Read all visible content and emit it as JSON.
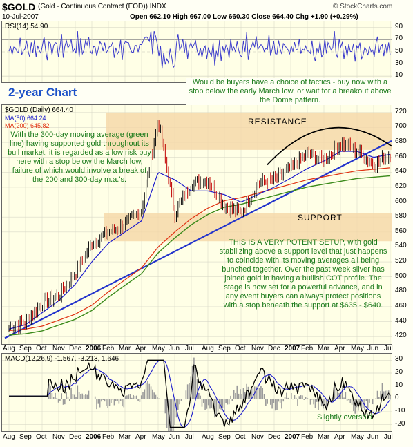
{
  "header": {
    "symbol": "$GOLD",
    "name": "(Gold - Continuous Contract (EOD)) INDX",
    "source": "© StockCharts.com",
    "date": "10-Jul-2007",
    "ohlc": "Open 662.10  High 667.00  Low 660.30  Close 664.40  Chg +1.90 (+0.29%)",
    "chg_arrow": "▲"
  },
  "colors": {
    "background": "#ffffe6",
    "rsi": "#3a3acc",
    "price_up": "#111111",
    "price_down": "#c00000",
    "ma50": "#1a1acc",
    "ma200": "#e03010",
    "ma300": "#3a8a1a",
    "trendline": "#2233cc",
    "band": "#f5d7a6",
    "annotation": "#1a7a1a"
  },
  "rsi_panel": {
    "label": "RSI(14) 54.90",
    "yticks": [
      "90",
      "70",
      "50",
      "30",
      "10"
    ]
  },
  "main_panel": {
    "subtitle": "2-year Chart",
    "legend": [
      {
        "text": "$GOLD (Daily) 664.40",
        "color": "#000000"
      },
      {
        "text": "MA(50) 664.24",
        "color": "#1a1acc"
      },
      {
        "text": "MA(200) 645.82",
        "color": "#e03010"
      }
    ],
    "resistance_label": "RESISTANCE",
    "support_label": "SUPPORT",
    "note_top": "Would be buyers have a choice of tactics - buy now with a stop below the early March low, or wait for a breakout above the Dome pattern.",
    "note_left": "With the 300-day moving average (green line) having supported gold throughout its bull market, it is regarded as a low risk buy here with a stop below the March low, failure of which would involve a break of the 200 and 300-day m.a.'s.",
    "note_bottom": "THIS IS A VERY POTENT SETUP, with gold stabilizing above a support level that just happens to coincide with its moving averages all being bunched together. Over the past week silver has joined gold in having a bullish COT profile. The stage is now set for a powerful advance, and in any event buyers can always protect positions with a stop beneath the support at $635 - $640.",
    "yticks": [
      "720",
      "700",
      "680",
      "660",
      "640",
      "620",
      "600",
      "580",
      "560",
      "540",
      "520",
      "500",
      "480",
      "460",
      "440",
      "420"
    ],
    "xticks": [
      "Aug",
      "Sep",
      "Oct",
      "Nov",
      "Dec",
      "2006",
      "Feb",
      "Mar",
      "Apr",
      "May",
      "Jun",
      "Jul",
      "Aug",
      "Sep",
      "Oct",
      "Nov",
      "Dec",
      "2007",
      "Feb",
      "Mar",
      "Apr",
      "May",
      "Jun",
      "Jul"
    ]
  },
  "macd_panel": {
    "label": "MACD(12,26,9) -1.567, -3.213, 1.646",
    "note": "Slightly oversold",
    "yticks": [
      "30",
      "20",
      "10",
      "0",
      "-10",
      "-20"
    ]
  },
  "chart_data": {
    "type": "line",
    "title": "$GOLD (Gold - Continuous Contract (EOD)) INDX",
    "subtitle": "2-year Chart",
    "x": [
      "Aug",
      "Sep",
      "Oct",
      "Nov",
      "Dec",
      "2006",
      "Feb",
      "Mar",
      "Apr",
      "May",
      "Jun",
      "Jul",
      "Aug",
      "Sep",
      "Oct",
      "Nov",
      "Dec",
      "2007",
      "Feb",
      "Mar",
      "Apr",
      "May",
      "Jun",
      "Jul"
    ],
    "ylim": [
      410,
      730
    ],
    "series": [
      {
        "name": "$GOLD (Daily)",
        "values": [
          432,
          440,
          465,
          475,
          505,
          545,
          560,
          570,
          590,
          710,
          585,
          625,
          630,
          595,
          585,
          625,
          630,
          645,
          665,
          655,
          680,
          668,
          650,
          664
        ]
      },
      {
        "name": "MA(50)",
        "values": [
          430,
          436,
          452,
          468,
          490,
          520,
          545,
          560,
          575,
          640,
          630,
          615,
          615,
          610,
          600,
          610,
          620,
          632,
          645,
          655,
          668,
          668,
          660,
          664
        ]
      },
      {
        "name": "MA(200)",
        "values": [
          428,
          430,
          434,
          442,
          450,
          462,
          480,
          496,
          512,
          540,
          560,
          578,
          592,
          602,
          606,
          612,
          618,
          624,
          630,
          634,
          638,
          642,
          644,
          646
        ]
      }
    ],
    "rsi": {
      "name": "RSI(14)",
      "last": 54.9,
      "ylim": [
        0,
        100
      ],
      "levels": [
        30,
        70
      ]
    },
    "macd": {
      "name": "MACD(12,26,9)",
      "values": [
        -1.567,
        -3.213,
        1.646
      ],
      "ylim": [
        -25,
        35
      ]
    },
    "bands": [
      {
        "label": "RESISTANCE",
        "range": [
          670,
          720
        ]
      },
      {
        "label": "SUPPORT",
        "range": [
          555,
          580
        ]
      }
    ],
    "legend": "top-left",
    "grid": true
  }
}
